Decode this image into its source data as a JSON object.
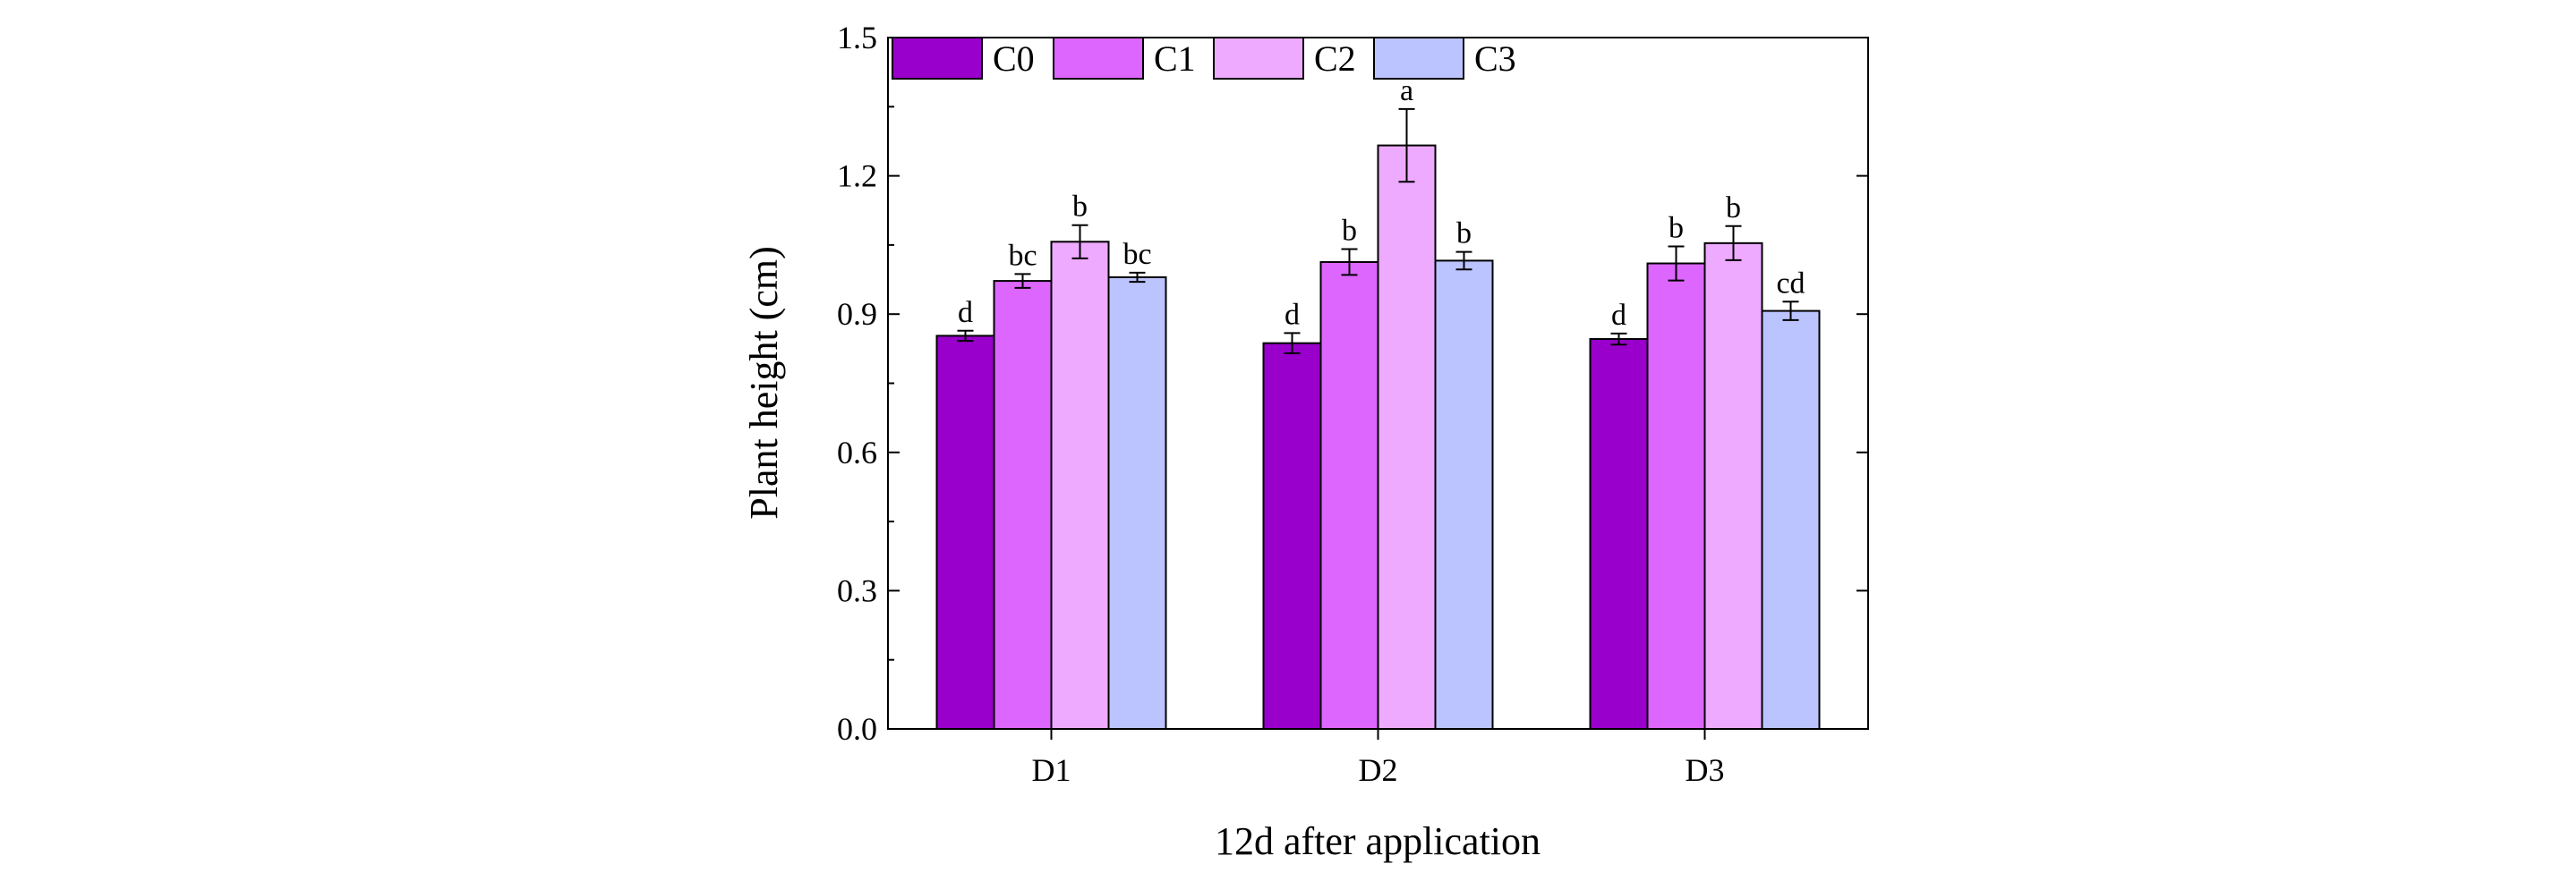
{
  "chart_data": {
    "type": "bar",
    "title": "",
    "xlabel": "12d after application",
    "ylabel": "Plant height (cm)",
    "ylim": [
      0,
      1.5
    ],
    "yticks": [
      "0.0",
      "0.3",
      "0.6",
      "0.9",
      "1.2",
      "1.5"
    ],
    "categories": [
      "D1",
      "D2",
      "D3"
    ],
    "legend_position": "top-left",
    "series": [
      {
        "name": "C0",
        "color": "#9900cc",
        "values": [
          0.853,
          0.837,
          0.846
        ],
        "errors": [
          0.011,
          0.022,
          0.012
        ],
        "labels": [
          "d",
          "d",
          "d"
        ]
      },
      {
        "name": "C1",
        "color": "#dd66ff",
        "values": [
          0.972,
          1.013,
          1.01
        ],
        "errors": [
          0.015,
          0.028,
          0.037
        ],
        "labels": [
          "bc",
          "b",
          "b"
        ]
      },
      {
        "name": "C2",
        "color": "#eeaaff",
        "values": [
          1.057,
          1.266,
          1.054
        ],
        "errors": [
          0.036,
          0.079,
          0.037
        ],
        "labels": [
          "b",
          "a",
          "b"
        ]
      },
      {
        "name": "C3",
        "color": "#bbc4ff",
        "values": [
          0.98,
          1.016,
          0.907
        ],
        "errors": [
          0.01,
          0.019,
          0.02
        ],
        "labels": [
          "bc",
          "b",
          "cd"
        ]
      }
    ]
  }
}
